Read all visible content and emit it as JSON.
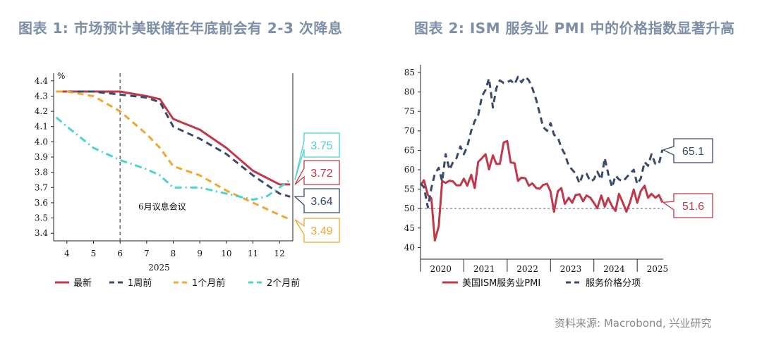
{
  "titles": {
    "chart1": "图表 1:  市场预计美联储在年底前会有 2-3 次降息",
    "chart2": "图表 2:  ISM 服务业 PMI 中的价格指数显著升高"
  },
  "source": "资料来源: Macrobond, 兴业研究",
  "colors": {
    "red": "#c0394b",
    "navy": "#3a4a6b",
    "orange": "#f0a830",
    "cyan": "#4fd1d1",
    "title": "#7d8fa8"
  },
  "chart_data": [
    {
      "type": "line",
      "title": "",
      "unit": "%",
      "xlabel": "2025",
      "ylabel": "",
      "x_ticks": [
        "4",
        "5",
        "6",
        "7",
        "8",
        "9",
        "10",
        "11",
        "12"
      ],
      "xlim": [
        3.5,
        12.5
      ],
      "ylim": [
        3.35,
        4.45
      ],
      "y_ticks": [
        "3.4",
        "3.5",
        "3.6",
        "3.7",
        "3.8",
        "3.9",
        "4.0",
        "4.1",
        "4.2",
        "4.3",
        "4.4"
      ],
      "vline": {
        "x": 6,
        "label": "6月议息会议"
      },
      "series": [
        {
          "name": "最新",
          "color": "#c0394b",
          "dash": "solid",
          "x": [
            3.6,
            4,
            5,
            6,
            7,
            7.5,
            8,
            9,
            10,
            11,
            12,
            12.4
          ],
          "y": [
            4.33,
            4.33,
            4.33,
            4.33,
            4.3,
            4.28,
            4.15,
            4.08,
            3.96,
            3.81,
            3.72,
            3.72
          ]
        },
        {
          "name": "1周前",
          "color": "#3a4a6b",
          "dash": "dash",
          "x": [
            3.6,
            4,
            5,
            6,
            7,
            7.5,
            8,
            9,
            10,
            11,
            12,
            12.4
          ],
          "y": [
            4.33,
            4.33,
            4.33,
            4.31,
            4.29,
            4.26,
            4.1,
            4.02,
            3.92,
            3.78,
            3.66,
            3.64
          ]
        },
        {
          "name": "1个月前",
          "color": "#f0a830",
          "dash": "dash",
          "x": [
            3.6,
            4,
            5,
            6,
            7,
            7.5,
            8,
            9,
            10,
            11,
            12,
            12.4
          ],
          "y": [
            4.33,
            4.33,
            4.3,
            4.2,
            4.05,
            3.96,
            3.84,
            3.78,
            3.68,
            3.6,
            3.52,
            3.49
          ]
        },
        {
          "name": "2个月前",
          "color": "#4fd1d1",
          "dash": "dashdot",
          "x": [
            3.6,
            4,
            5,
            6,
            7,
            7.5,
            8,
            9,
            10,
            11,
            11.5,
            12,
            12.4
          ],
          "y": [
            4.16,
            4.1,
            3.96,
            3.88,
            3.82,
            3.78,
            3.7,
            3.7,
            3.66,
            3.62,
            3.64,
            3.7,
            3.75
          ]
        }
      ],
      "callouts": [
        {
          "text": "3.75",
          "color": "#4fd1d1",
          "value": 3.75
        },
        {
          "text": "3.72",
          "color": "#c0394b",
          "value": 3.72
        },
        {
          "text": "3.64",
          "color": "#3a4a6b",
          "value": 3.64
        },
        {
          "text": "3.49",
          "color": "#f0a830",
          "value": 3.49
        }
      ]
    },
    {
      "type": "line",
      "title": "",
      "xlabel": "",
      "ylabel": "",
      "x_ticks": [
        "2020",
        "2021",
        "2022",
        "2023",
        "2024",
        "2025"
      ],
      "xlim": [
        2019.5,
        2025.1
      ],
      "ylim": [
        37,
        87
      ],
      "y_ticks": [
        "40",
        "45",
        "50",
        "55",
        "60",
        "65",
        "70",
        "75",
        "80",
        "85"
      ],
      "hline": 50,
      "series": [
        {
          "name": "美国ISM服务业PMI",
          "color": "#c0394b",
          "dash": "solid",
          "x": [
            2019.5,
            2019.58,
            2019.67,
            2019.75,
            2019.83,
            2019.92,
            2020.0,
            2020.08,
            2020.17,
            2020.25,
            2020.33,
            2020.42,
            2020.5,
            2020.58,
            2020.67,
            2020.75,
            2020.83,
            2020.92,
            2021.0,
            2021.08,
            2021.17,
            2021.25,
            2021.33,
            2021.42,
            2021.5,
            2021.58,
            2021.67,
            2021.75,
            2021.83,
            2021.92,
            2022.0,
            2022.08,
            2022.17,
            2022.25,
            2022.33,
            2022.42,
            2022.5,
            2022.58,
            2022.67,
            2022.75,
            2022.83,
            2022.92,
            2023.0,
            2023.08,
            2023.17,
            2023.25,
            2023.33,
            2023.42,
            2023.5,
            2023.58,
            2023.67,
            2023.75,
            2023.83,
            2023.92,
            2024.0,
            2024.08,
            2024.17,
            2024.25,
            2024.33,
            2024.42,
            2024.5,
            2024.58,
            2024.67,
            2024.75,
            2024.83,
            2024.92,
            2025.0,
            2025.08
          ],
          "y": [
            56,
            57.3,
            53.5,
            52.6,
            41.8,
            45.4,
            57.1,
            56.6,
            57.2,
            57.0,
            56.0,
            56.0,
            57.7,
            55.9,
            58.7,
            55.3,
            62.0,
            63.0,
            64.0,
            60.1,
            63.7,
            61.5,
            61.5,
            67.0,
            67.4,
            61.9,
            61.7,
            57.1,
            58.0,
            57.8,
            55.9,
            56.5,
            55.3,
            55.1,
            56.1,
            56.4,
            54.4,
            49.2,
            54.5,
            55.3,
            51.2,
            52.8,
            51.5,
            53.5,
            53.7,
            51.9,
            53.4,
            52.8,
            51.5,
            50.1,
            53.4,
            50.5,
            52.7,
            50.6,
            49.4,
            53.8,
            51.5,
            49.2,
            51.5,
            54.9,
            51.5,
            54.5,
            55.9,
            52.8,
            53.8,
            52.8,
            53.5,
            51.6
          ]
        },
        {
          "name": "服务价格分项",
          "color": "#3a4a6b",
          "dash": "dash",
          "x": [
            2019.5,
            2019.58,
            2019.67,
            2019.75,
            2019.83,
            2019.92,
            2020.0,
            2020.08,
            2020.17,
            2020.25,
            2020.33,
            2020.42,
            2020.5,
            2020.58,
            2020.67,
            2020.75,
            2020.83,
            2020.92,
            2021.0,
            2021.08,
            2021.17,
            2021.25,
            2021.33,
            2021.42,
            2021.5,
            2021.58,
            2021.67,
            2021.75,
            2021.83,
            2021.92,
            2022.0,
            2022.08,
            2022.17,
            2022.25,
            2022.33,
            2022.42,
            2022.5,
            2022.58,
            2022.67,
            2022.75,
            2022.83,
            2022.92,
            2023.0,
            2023.08,
            2023.17,
            2023.25,
            2023.33,
            2023.42,
            2023.5,
            2023.58,
            2023.67,
            2023.75,
            2023.83,
            2023.92,
            2024.0,
            2024.08,
            2024.17,
            2024.25,
            2024.33,
            2024.42,
            2024.5,
            2024.58,
            2024.67,
            2024.75,
            2024.83,
            2024.92,
            2025.0,
            2025.08
          ],
          "y": [
            56.5,
            55.5,
            50.3,
            55.3,
            59.0,
            60.5,
            57.0,
            64.0,
            60.0,
            62.0,
            63.0,
            66.0,
            64.0,
            66.0,
            70.0,
            72.5,
            74.0,
            79.0,
            80.5,
            83.5,
            76.0,
            81.0,
            83.0,
            82.3,
            82.5,
            83.0,
            82.0,
            83.9,
            82.5,
            83.9,
            83.0,
            81.0,
            78.0,
            74.5,
            71.0,
            70.0,
            72.0,
            69.0,
            68.3,
            65.7,
            64.0,
            61.0,
            60.0,
            59.0,
            56.5,
            59.0,
            59.0,
            57.0,
            57.5,
            59.5,
            57.5,
            63.0,
            59.0,
            55.5,
            58.5,
            57.5,
            57.0,
            58.0,
            59.0,
            60.0,
            56.3,
            57.7,
            62.0,
            61.0,
            64.0,
            61.5,
            61.5,
            65.1
          ]
        }
      ],
      "callouts": [
        {
          "text": "65.1",
          "color": "#3a4a6b",
          "value": 65.1
        },
        {
          "text": "51.6",
          "color": "#c0394b",
          "value": 51.6
        }
      ]
    }
  ]
}
